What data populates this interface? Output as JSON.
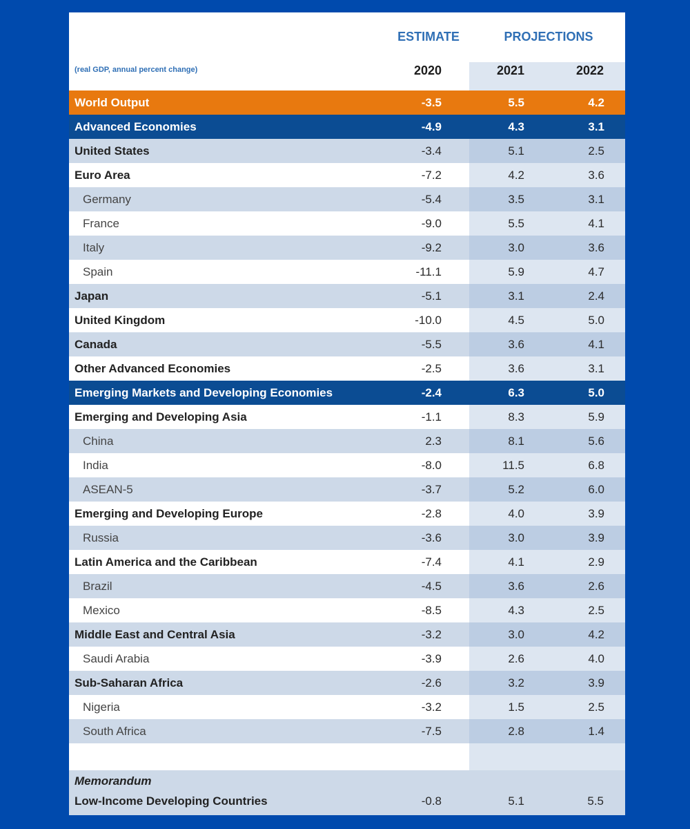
{
  "chart_data": {
    "type": "table",
    "headers": {
      "estimate": "ESTIMATE",
      "projections": "PROJECTIONS",
      "caption": "(real GDP, annual percent change)",
      "years": [
        "2020",
        "2021",
        "2022"
      ]
    },
    "rows": [
      {
        "label": "World Output",
        "style": "orange",
        "values": [
          "-3.5",
          "5.5",
          "4.2"
        ]
      },
      {
        "label": "Advanced Economies",
        "style": "navy",
        "values": [
          "-4.9",
          "4.3",
          "3.1"
        ]
      },
      {
        "label": "United States",
        "style": "bold",
        "values": [
          "-3.4",
          "5.1",
          "2.5"
        ]
      },
      {
        "label": "Euro Area",
        "style": "bold",
        "values": [
          "-7.2",
          "4.2",
          "3.6"
        ]
      },
      {
        "label": "Germany",
        "style": "indent",
        "values": [
          "-5.4",
          "3.5",
          "3.1"
        ]
      },
      {
        "label": "France",
        "style": "indent",
        "values": [
          "-9.0",
          "5.5",
          "4.1"
        ]
      },
      {
        "label": "Italy",
        "style": "indent",
        "values": [
          "-9.2",
          "3.0",
          "3.6"
        ]
      },
      {
        "label": "Spain",
        "style": "indent",
        "values": [
          "-11.1",
          "5.9",
          "4.7"
        ]
      },
      {
        "label": "Japan",
        "style": "bold",
        "values": [
          "-5.1",
          "3.1",
          "2.4"
        ]
      },
      {
        "label": "United Kingdom",
        "style": "bold",
        "values": [
          "-10.0",
          "4.5",
          "5.0"
        ]
      },
      {
        "label": "Canada",
        "style": "bold",
        "values": [
          "-5.5",
          "3.6",
          "4.1"
        ]
      },
      {
        "label": "Other Advanced Economies",
        "style": "bold",
        "values": [
          "-2.5",
          "3.6",
          "3.1"
        ]
      },
      {
        "label": "Emerging Markets and Developing Economies",
        "style": "navy",
        "values": [
          "-2.4",
          "6.3",
          "5.0"
        ]
      },
      {
        "label": "Emerging and Developing Asia",
        "style": "bold",
        "values": [
          "-1.1",
          "8.3",
          "5.9"
        ]
      },
      {
        "label": "China",
        "style": "indent",
        "values": [
          "2.3",
          "8.1",
          "5.6"
        ]
      },
      {
        "label": "India",
        "style": "indent",
        "values": [
          "-8.0",
          "11.5",
          "6.8"
        ]
      },
      {
        "label": "ASEAN-5",
        "style": "indent",
        "values": [
          "-3.7",
          "5.2",
          "6.0"
        ]
      },
      {
        "label": "Emerging and Developing Europe",
        "style": "bold",
        "values": [
          "-2.8",
          "4.0",
          "3.9"
        ]
      },
      {
        "label": "Russia",
        "style": "indent",
        "values": [
          "-3.6",
          "3.0",
          "3.9"
        ]
      },
      {
        "label": "Latin America and the Caribbean",
        "style": "bold",
        "values": [
          "-7.4",
          "4.1",
          "2.9"
        ]
      },
      {
        "label": "Brazil",
        "style": "indent",
        "values": [
          "-4.5",
          "3.6",
          "2.6"
        ]
      },
      {
        "label": "Mexico",
        "style": "indent",
        "values": [
          "-8.5",
          "4.3",
          "2.5"
        ]
      },
      {
        "label": "Middle East and Central Asia",
        "style": "bold",
        "values": [
          "-3.2",
          "3.0",
          "4.2"
        ]
      },
      {
        "label": "Saudi Arabia",
        "style": "indent",
        "values": [
          "-3.9",
          "2.6",
          "4.0"
        ]
      },
      {
        "label": "Sub-Saharan Africa",
        "style": "bold",
        "values": [
          "-2.6",
          "3.2",
          "3.9"
        ]
      },
      {
        "label": "Nigeria",
        "style": "indent",
        "values": [
          "-3.2",
          "1.5",
          "2.5"
        ]
      },
      {
        "label": "South Africa",
        "style": "indent",
        "values": [
          "-7.5",
          "2.8",
          "1.4"
        ]
      }
    ],
    "memorandum": {
      "title": "Memorandum",
      "label": "Low-Income Developing Countries",
      "values": [
        "-0.8",
        "5.1",
        "5.5"
      ]
    }
  },
  "colors": {
    "background": "#004aad",
    "world_output": "#e8790f",
    "group_header": "#0b4c93",
    "header_text": "#2f6fb5"
  }
}
